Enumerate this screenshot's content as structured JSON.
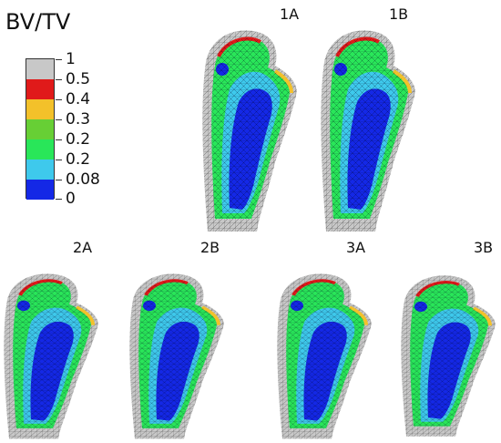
{
  "title": "BV/TV",
  "legend": {
    "labels": [
      "1",
      "0.5",
      "0.4",
      "0.3",
      "0.2",
      "0.2",
      "0.08",
      "0"
    ],
    "colors": [
      "#c8c8c8",
      "#e01a1a",
      "#f3c12a",
      "#67cf35",
      "#29e659",
      "#3ec9ec",
      "#1428e6"
    ]
  },
  "panels": [
    {
      "id": "1A",
      "label": "1A"
    },
    {
      "id": "1B",
      "label": "1B"
    },
    {
      "id": "2A",
      "label": "2A"
    },
    {
      "id": "2B",
      "label": "2B"
    },
    {
      "id": "3A",
      "label": "3A"
    },
    {
      "id": "3B",
      "label": "3B"
    }
  ],
  "colors": {
    "bone_shaft": "#c8c8c8",
    "dense": "#1428e6",
    "light_blue": "#3ec9ec",
    "green": "#29e659",
    "yellow_green": "#9ede3a",
    "red": "#e01a1a"
  }
}
